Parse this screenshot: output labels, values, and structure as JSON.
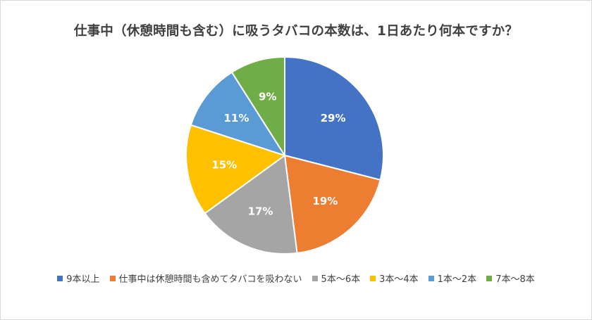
{
  "chart_data": {
    "type": "pie",
    "title": "仕事中（休憩時間も含む）に吸うタバコの本数は、1日あたり何本ですか？",
    "legend_position": "bottom",
    "slices": [
      {
        "label": "9本以上",
        "value": 29,
        "display": "29%",
        "color": "#4472c4"
      },
      {
        "label": "仕事中は休憩時間も含めてタバコを吸わない",
        "value": 19,
        "display": "19%",
        "color": "#ed7d31"
      },
      {
        "label": "5本～6本",
        "value": 17,
        "display": "17%",
        "color": "#a5a5a5"
      },
      {
        "label": "3本～4本",
        "value": 15,
        "display": "15%",
        "color": "#ffc000"
      },
      {
        "label": "1本～2本",
        "value": 11,
        "display": "11%",
        "color": "#5b9bd5"
      },
      {
        "label": "7本～8本",
        "value": 9,
        "display": "9%",
        "color": "#70ad47"
      }
    ]
  }
}
